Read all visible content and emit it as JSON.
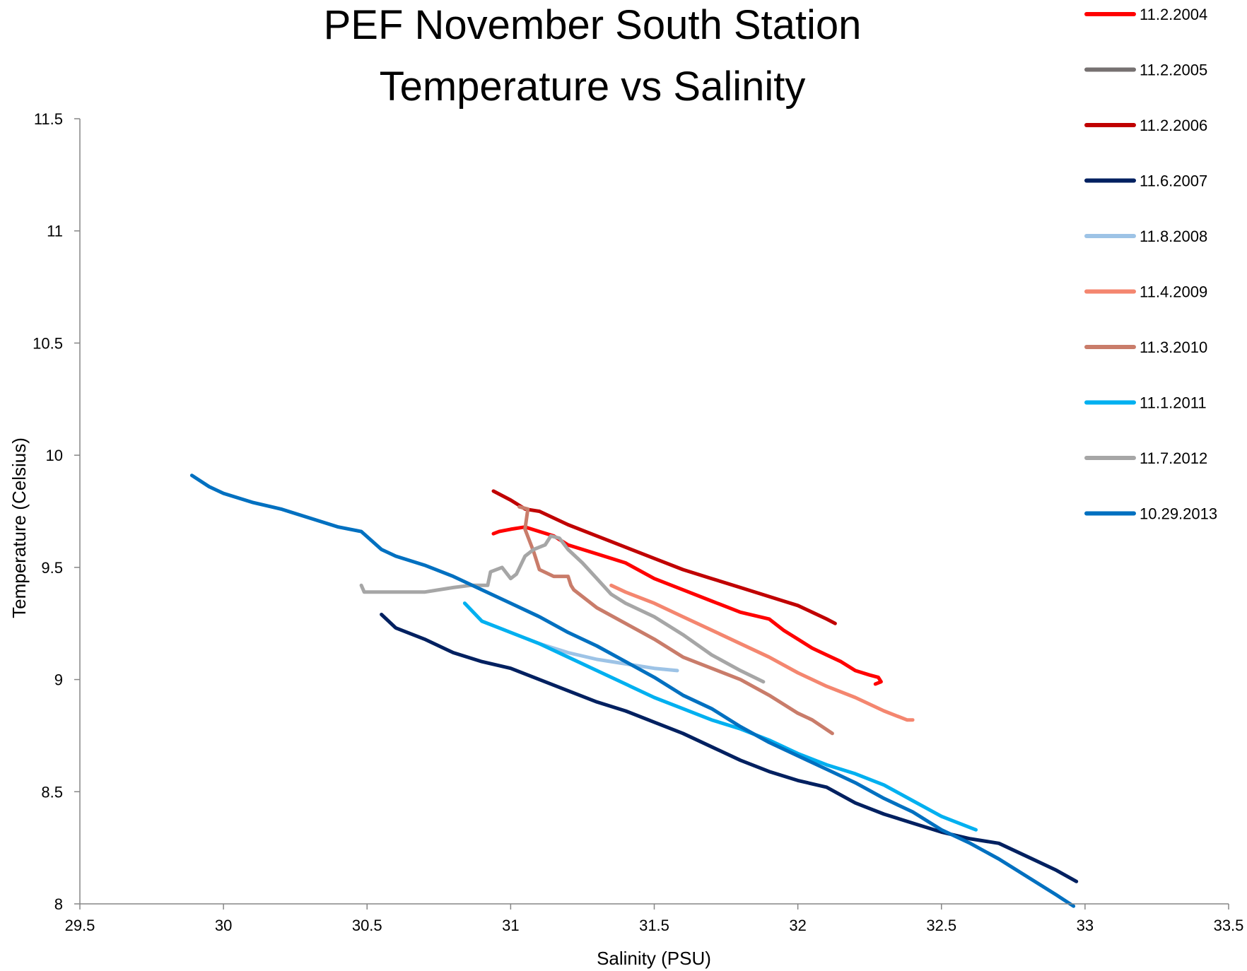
{
  "chart_data": {
    "type": "line",
    "title_lines": [
      "PEF November South Station",
      "Temperature vs Salinity"
    ],
    "xlabel": "Salinity (PSU)",
    "ylabel": "Temperature (Celsius)",
    "xlim": [
      29.5,
      33.5
    ],
    "ylim": [
      8,
      11.5
    ],
    "x_ticks": [
      29.5,
      30,
      30.5,
      31,
      31.5,
      32,
      32.5,
      33,
      33.5
    ],
    "y_ticks": [
      8,
      8.5,
      9,
      9.5,
      10,
      10.5,
      11,
      11.5
    ],
    "grid": false,
    "legend_position": "right",
    "series": [
      {
        "name": "11.2.2004",
        "color": "#ff0000",
        "x": [
          30.94,
          30.96,
          31.0,
          31.05,
          31.1,
          31.15,
          31.2,
          31.3,
          31.4,
          31.5,
          31.6,
          31.7,
          31.8,
          31.9,
          31.95,
          32.0,
          32.05,
          32.1,
          32.15,
          32.2,
          32.25,
          32.28,
          32.29,
          32.27
        ],
        "y": [
          9.65,
          9.66,
          9.67,
          9.68,
          9.66,
          9.64,
          9.6,
          9.56,
          9.52,
          9.45,
          9.4,
          9.35,
          9.3,
          9.27,
          9.22,
          9.18,
          9.14,
          9.11,
          9.08,
          9.04,
          9.02,
          9.01,
          8.99,
          8.98
        ]
      },
      {
        "name": "11.2.2005",
        "color": "#767171",
        "x": [],
        "y": []
      },
      {
        "name": "11.2.2006",
        "color": "#c00000",
        "x": [
          30.94,
          31.0,
          31.05,
          31.1,
          31.15,
          31.2,
          31.3,
          31.4,
          31.5,
          31.6,
          31.7,
          31.8,
          31.9,
          31.95,
          32.0,
          32.05,
          32.1,
          32.13
        ],
        "y": [
          9.84,
          9.8,
          9.76,
          9.75,
          9.72,
          9.69,
          9.64,
          9.59,
          9.54,
          9.49,
          9.45,
          9.41,
          9.37,
          9.35,
          9.33,
          9.3,
          9.27,
          9.25
        ]
      },
      {
        "name": "11.6.2007",
        "color": "#002060",
        "x": [
          30.55,
          30.6,
          30.7,
          30.8,
          30.9,
          31.0,
          31.1,
          31.2,
          31.3,
          31.4,
          31.5,
          31.6,
          31.7,
          31.8,
          31.9,
          32.0,
          32.1,
          32.2,
          32.3,
          32.4,
          32.5,
          32.6,
          32.7,
          32.8,
          32.9,
          32.97
        ],
        "y": [
          9.29,
          9.23,
          9.18,
          9.12,
          9.08,
          9.05,
          9.0,
          8.95,
          8.9,
          8.86,
          8.81,
          8.76,
          8.7,
          8.64,
          8.59,
          8.55,
          8.52,
          8.45,
          8.4,
          8.36,
          8.32,
          8.29,
          8.27,
          8.21,
          8.15,
          8.1
        ]
      },
      {
        "name": "11.8.2008",
        "color": "#9dc3e6",
        "x": [
          31.06,
          31.1,
          31.2,
          31.3,
          31.4,
          31.5,
          31.58
        ],
        "y": [
          9.18,
          9.16,
          9.12,
          9.09,
          9.07,
          9.05,
          9.04
        ]
      },
      {
        "name": "11.4.2009",
        "color": "#f4866f",
        "x": [
          31.35,
          31.4,
          31.5,
          31.6,
          31.7,
          31.8,
          31.9,
          32.0,
          32.1,
          32.2,
          32.3,
          32.38,
          32.4
        ],
        "y": [
          9.42,
          9.39,
          9.34,
          9.28,
          9.22,
          9.16,
          9.1,
          9.03,
          8.97,
          8.92,
          8.86,
          8.82,
          8.82
        ]
      },
      {
        "name": "11.3.2010",
        "color": "#c97c6a",
        "x": [
          31.03,
          31.06,
          31.05,
          31.08,
          31.1,
          31.15,
          31.2,
          31.21,
          31.22,
          31.3,
          31.4,
          31.5,
          31.6,
          31.7,
          31.8,
          31.9,
          32.0,
          32.05,
          32.12
        ],
        "y": [
          9.77,
          9.76,
          9.67,
          9.57,
          9.49,
          9.46,
          9.46,
          9.42,
          9.4,
          9.32,
          9.25,
          9.18,
          9.1,
          9.05,
          9.0,
          8.93,
          8.85,
          8.82,
          8.76
        ]
      },
      {
        "name": "11.1.2011",
        "color": "#00b0f0",
        "x": [
          30.84,
          30.9,
          31.0,
          31.1,
          31.2,
          31.3,
          31.4,
          31.5,
          31.6,
          31.7,
          31.8,
          31.9,
          32.0,
          32.1,
          32.2,
          32.3,
          32.4,
          32.5,
          32.6,
          32.62
        ],
        "y": [
          9.34,
          9.26,
          9.21,
          9.16,
          9.1,
          9.04,
          8.98,
          8.92,
          8.87,
          8.82,
          8.78,
          8.73,
          8.67,
          8.62,
          8.58,
          8.53,
          8.46,
          8.39,
          8.34,
          8.33
        ]
      },
      {
        "name": "11.7.2012",
        "color": "#a6a6a6",
        "x": [
          30.48,
          30.49,
          30.6,
          30.7,
          30.8,
          30.86,
          30.92,
          30.93,
          30.97,
          31.0,
          31.02,
          31.05,
          31.08,
          31.12,
          31.14,
          31.17,
          31.2,
          31.25,
          31.3,
          31.35,
          31.4,
          31.5,
          31.6,
          31.7,
          31.8,
          31.88
        ],
        "y": [
          9.42,
          9.39,
          9.39,
          9.39,
          9.41,
          9.42,
          9.42,
          9.48,
          9.5,
          9.45,
          9.47,
          9.55,
          9.58,
          9.6,
          9.64,
          9.63,
          9.58,
          9.52,
          9.45,
          9.38,
          9.34,
          9.28,
          9.2,
          9.11,
          9.04,
          8.99
        ]
      },
      {
        "name": "10.29.2013",
        "color": "#0070c0",
        "x": [
          29.89,
          29.95,
          30.0,
          30.1,
          30.2,
          30.3,
          30.4,
          30.48,
          30.55,
          30.6,
          30.7,
          30.8,
          30.9,
          31.0,
          31.1,
          31.2,
          31.3,
          31.4,
          31.5,
          31.6,
          31.7,
          31.8,
          31.9,
          32.0,
          32.1,
          32.2,
          32.3,
          32.4,
          32.5,
          32.6,
          32.7,
          32.8,
          32.9,
          32.96
        ],
        "y": [
          9.91,
          9.86,
          9.83,
          9.79,
          9.76,
          9.72,
          9.68,
          9.66,
          9.58,
          9.55,
          9.51,
          9.46,
          9.4,
          9.34,
          9.28,
          9.21,
          9.15,
          9.08,
          9.01,
          8.93,
          8.87,
          8.79,
          8.72,
          8.66,
          8.6,
          8.54,
          8.47,
          8.41,
          8.33,
          8.27,
          8.2,
          8.12,
          8.04,
          7.99
        ]
      }
    ]
  }
}
